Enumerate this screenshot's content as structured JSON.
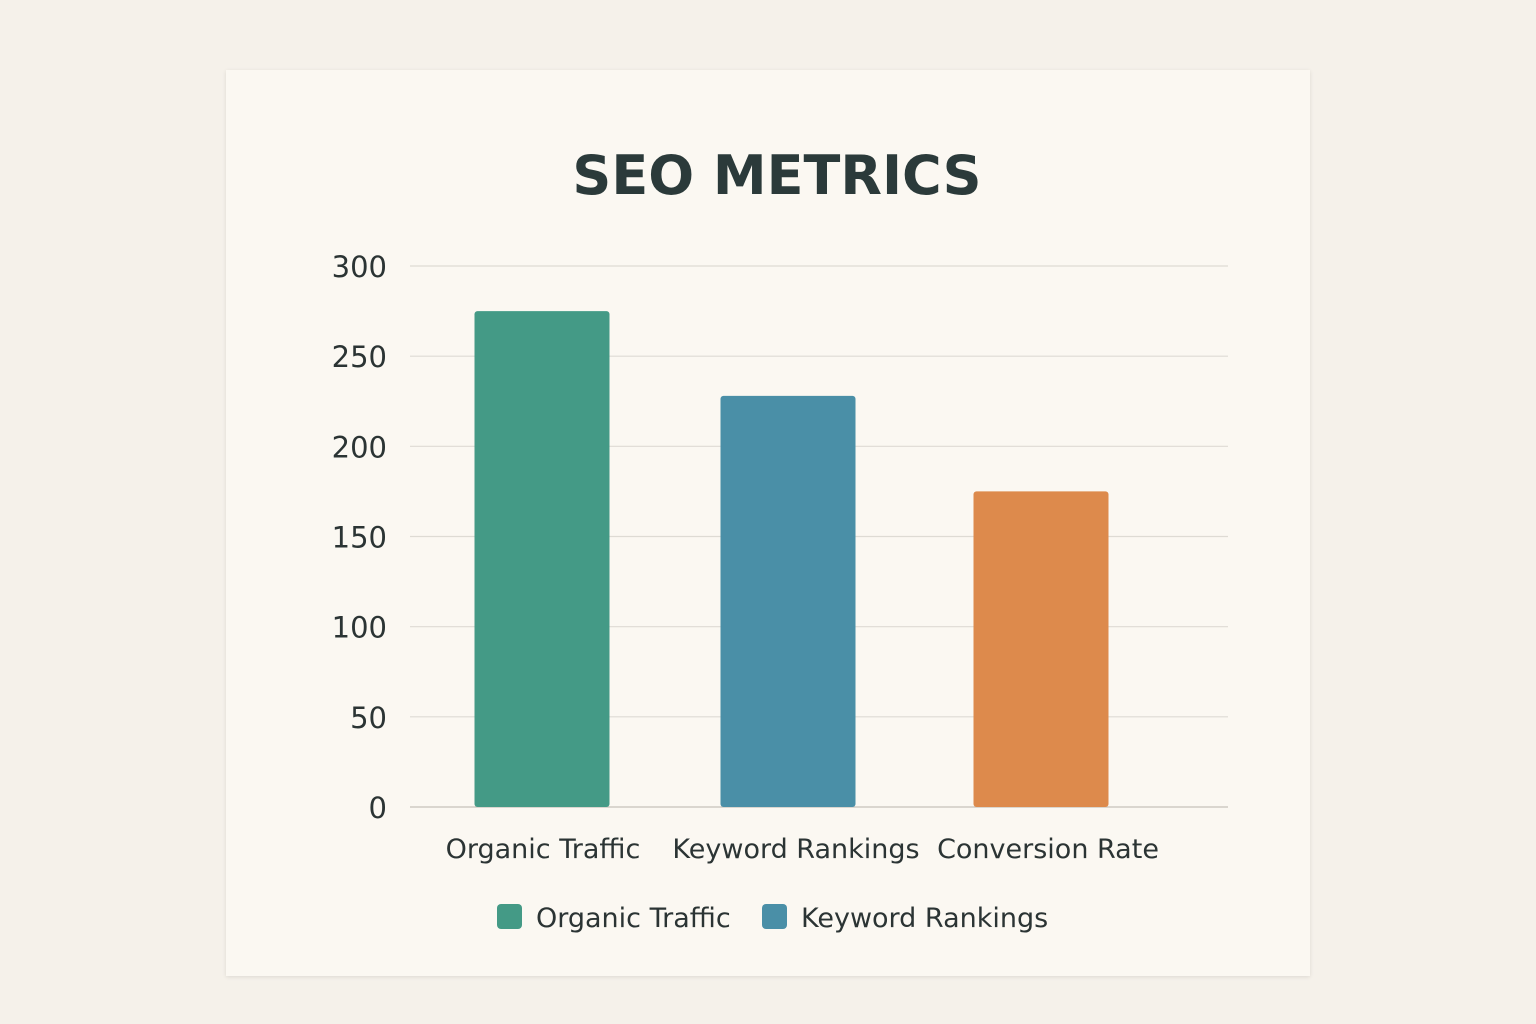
{
  "chart_data": {
    "type": "bar",
    "title": "SEO METRICS",
    "xlabel": "",
    "ylabel": "",
    "categories": [
      "Organic Traffic",
      "Keyword Rankings",
      "Conversion Rate"
    ],
    "values": [
      275,
      228,
      175
    ],
    "bar_colors": [
      "#449a86",
      "#4a8fa7",
      "#dd8a4c"
    ],
    "ylim": [
      0,
      300
    ],
    "yticks": [
      0,
      50,
      100,
      150,
      200,
      250,
      300
    ],
    "grid": true,
    "legend": {
      "placement": "bottom",
      "entries": [
        {
          "label": "Organic Traffic",
          "color": "#449a86"
        },
        {
          "label": "Keyword Rankings",
          "color": "#4a8fa7"
        }
      ]
    }
  }
}
